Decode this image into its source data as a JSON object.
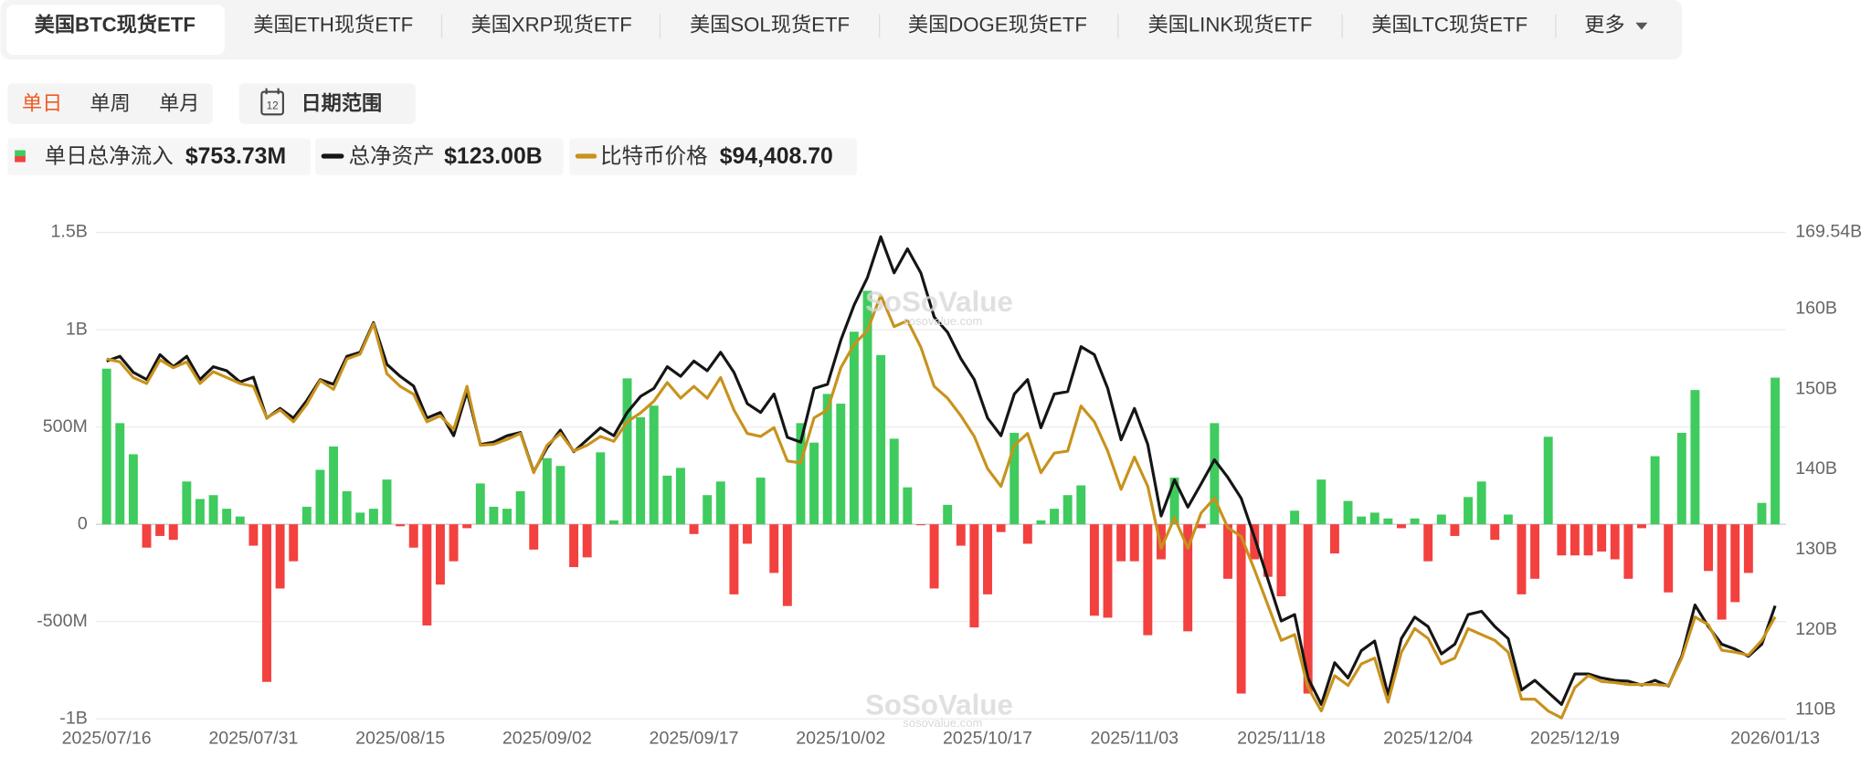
{
  "tabs": {
    "items": [
      "美国BTC现货ETF",
      "美国ETH现货ETF",
      "美国XRP现货ETF",
      "美国SOL现货ETF",
      "美国DOGE现货ETF",
      "美国LINK现货ETF",
      "美国LTC现货ETF"
    ],
    "active": 0,
    "more": "更多"
  },
  "period": {
    "options": [
      "单日",
      "单周",
      "单月"
    ],
    "active": 0,
    "calendar_icon": "12",
    "date_range": "日期范围"
  },
  "watermark": {
    "brand": "SoSoValue",
    "domain": "sosovalue.com"
  },
  "chart_data": {
    "type": "combo",
    "categories": [
      "2025/07/16",
      null,
      null,
      null,
      null,
      null,
      null,
      null,
      null,
      null,
      null,
      "2025/07/31",
      null,
      null,
      null,
      null,
      null,
      null,
      null,
      null,
      null,
      null,
      "2025/08/15",
      null,
      null,
      null,
      null,
      null,
      null,
      null,
      null,
      null,
      null,
      "2025/09/02",
      null,
      null,
      null,
      null,
      null,
      null,
      null,
      null,
      null,
      null,
      "2025/09/17",
      null,
      null,
      null,
      null,
      null,
      null,
      null,
      null,
      null,
      null,
      "2025/10/02",
      null,
      null,
      null,
      null,
      null,
      null,
      null,
      null,
      null,
      null,
      "2025/10/17",
      null,
      null,
      null,
      null,
      null,
      null,
      null,
      null,
      null,
      null,
      "2025/11/03",
      null,
      null,
      null,
      null,
      null,
      null,
      null,
      null,
      null,
      null,
      "2025/11/18",
      null,
      null,
      null,
      null,
      null,
      null,
      null,
      null,
      null,
      null,
      "2025/12/04",
      null,
      null,
      null,
      null,
      null,
      null,
      null,
      null,
      null,
      null,
      "2025/12/19",
      null,
      null,
      null,
      null,
      null,
      null,
      null,
      null,
      null,
      null,
      null,
      null,
      null,
      null,
      "2026/01/13"
    ],
    "series": [
      {
        "name": "单日总净流入",
        "latest": "$753.73M",
        "type": "bar",
        "color": "#3fcb5e",
        "negative_color": "#f2413f",
        "values": [
          800,
          520,
          360,
          -120,
          -60,
          -80,
          220,
          130,
          150,
          80,
          40,
          -110,
          -810,
          -330,
          -190,
          90,
          280,
          400,
          170,
          60,
          80,
          230,
          -10,
          -120,
          -520,
          -310,
          -190,
          -20,
          210,
          90,
          80,
          170,
          -130,
          340,
          300,
          -220,
          -170,
          370,
          20,
          750,
          550,
          610,
          250,
          290,
          -50,
          150,
          220,
          -360,
          -100,
          240,
          -250,
          -420,
          520,
          420,
          670,
          620,
          990,
          1200,
          870,
          440,
          190,
          -5,
          -330,
          100,
          -110,
          -530,
          -360,
          -40,
          470,
          -100,
          20,
          80,
          150,
          200,
          -470,
          -480,
          -190,
          -190,
          -570,
          -180,
          240,
          -550,
          -20,
          520,
          -280,
          -870,
          -180,
          -270,
          -370,
          70,
          -870,
          230,
          -150,
          120,
          40,
          60,
          30,
          -20,
          30,
          -190,
          50,
          -60,
          140,
          220,
          -80,
          50,
          -360,
          -280,
          450,
          -160,
          -160,
          -160,
          -140,
          -180,
          -280,
          -20,
          350,
          -350,
          470,
          690,
          -240,
          -490,
          -400,
          -250,
          110,
          753.73
        ]
      },
      {
        "name": "总净资产",
        "latest": "$123.00B",
        "type": "line",
        "axis": "y2",
        "color": "#151515",
        "values": [
          153.5,
          154.1,
          152.1,
          151.2,
          154.3,
          152.8,
          154.1,
          151.2,
          152.8,
          152.3,
          150.9,
          151.5,
          146.4,
          147.6,
          146.4,
          148.6,
          151.2,
          150.6,
          154.1,
          154.6,
          158.3,
          153.1,
          151.6,
          150.4,
          146.4,
          147.1,
          144.2,
          149.7,
          143.1,
          143.4,
          144.2,
          144.6,
          139.7,
          142.7,
          144.9,
          142.2,
          143.7,
          145.2,
          144.2,
          147.1,
          149.1,
          150.1,
          152.8,
          151.6,
          153.5,
          152.3,
          154.6,
          152.1,
          148.2,
          147.1,
          149.4,
          144.0,
          143.4,
          150.1,
          150.6,
          156.1,
          160.5,
          163.9,
          169.0,
          164.5,
          167.5,
          164.5,
          159.0,
          157.1,
          153.8,
          151.2,
          146.4,
          144.2,
          149.4,
          151.2,
          145.2,
          149.4,
          149.7,
          155.3,
          154.3,
          150.1,
          143.7,
          147.6,
          143.1,
          134.2,
          138.7,
          135.3,
          138.2,
          141.2,
          139.0,
          136.4,
          131.5,
          126.3,
          121.1,
          121.9,
          114.0,
          110.7,
          115.9,
          114.0,
          117.4,
          118.6,
          111.9,
          118.9,
          121.6,
          120.4,
          117.0,
          118.2,
          121.9,
          122.3,
          120.4,
          118.9,
          112.5,
          113.7,
          112.2,
          110.7,
          114.5,
          114.5,
          114.0,
          113.7,
          113.6,
          113.1,
          113.7,
          113.0,
          116.7,
          123.1,
          120.4,
          118.2,
          117.6,
          116.7,
          118.2,
          123.0
        ]
      },
      {
        "name": "比特币价格",
        "latest": "$94,408.70",
        "type": "line",
        "axis": "y3",
        "color": "#c8921c",
        "values": [
          120700,
          120400,
          118800,
          118200,
          120600,
          119800,
          120400,
          118200,
          119400,
          118800,
          118200,
          117900,
          114700,
          115500,
          114300,
          116100,
          118500,
          117600,
          120700,
          121200,
          124300,
          119200,
          117900,
          117100,
          114300,
          114900,
          113500,
          117900,
          111900,
          112000,
          112500,
          113100,
          109100,
          111900,
          113100,
          111300,
          111900,
          112800,
          112300,
          114300,
          115200,
          116400,
          118300,
          116700,
          117900,
          116700,
          118800,
          115500,
          113100,
          112800,
          113700,
          110300,
          110100,
          114700,
          115500,
          119800,
          122200,
          123600,
          127200,
          124000,
          124600,
          121900,
          117900,
          116700,
          114900,
          112800,
          109500,
          107700,
          111900,
          113100,
          109100,
          111100,
          111300,
          115900,
          114300,
          111300,
          107400,
          110700,
          107700,
          101400,
          104500,
          101400,
          105000,
          106500,
          103500,
          102600,
          99200,
          95600,
          92000,
          92600,
          87200,
          84800,
          88400,
          87400,
          89600,
          90200,
          85700,
          90800,
          93200,
          92200,
          89600,
          90200,
          93200,
          92600,
          92000,
          90800,
          86000,
          86000,
          84800,
          84100,
          87200,
          88400,
          87800,
          87700,
          87500,
          87500,
          87500,
          87400,
          90200,
          94400,
          93600,
          91000,
          90800,
          90500,
          92000,
          94408.7
        ]
      }
    ],
    "ylim": [
      -1000,
      1500
    ],
    "yticks": [
      {
        "value": -1000,
        "label": "-1B"
      },
      {
        "value": -500,
        "label": "-500M"
      },
      0,
      {
        "value": 500,
        "label": "500M"
      },
      {
        "value": 1000,
        "label": "1B"
      },
      {
        "value": 1500,
        "label": "1.5B"
      }
    ],
    "y2lim": [
      108.9,
      169.54
    ],
    "y2ticks": [
      {
        "value": 110,
        "label": "110B"
      },
      {
        "value": 120,
        "label": "120B"
      },
      {
        "value": 130,
        "label": "130B"
      },
      {
        "value": 140,
        "label": "140B"
      },
      {
        "value": 150,
        "label": "150B"
      },
      {
        "value": 160,
        "label": "160B"
      },
      {
        "value": 169.54,
        "label": "169.54B"
      }
    ],
    "y3lim": [
      84000,
      133600
    ],
    "grid": true
  }
}
